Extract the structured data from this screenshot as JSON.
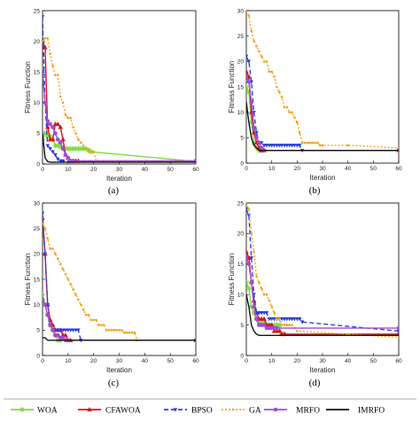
{
  "chart_data": [
    {
      "type": "line",
      "panel_label": "(a)",
      "xlabel": "Iteration",
      "ylabel": "Fitness Function",
      "xlim": [
        0,
        60
      ],
      "ylim": [
        0,
        25
      ],
      "xticks": [
        0,
        10,
        20,
        30,
        40,
        50,
        60
      ],
      "yticks": [
        0,
        5,
        10,
        15,
        20,
        25
      ],
      "grid": false,
      "series": [
        {
          "name": "WOA",
          "x": [
            0,
            1,
            2,
            3,
            4,
            5,
            6,
            7,
            8,
            9,
            10,
            11,
            12,
            13,
            14,
            15,
            16,
            17,
            18,
            19,
            60
          ],
          "y": [
            4,
            5,
            4.5,
            4.5,
            4,
            3,
            3,
            2.8,
            2.6,
            2.5,
            2.5,
            2.5,
            2.5,
            2.5,
            2.5,
            2.5,
            2.5,
            2.5,
            2.3,
            2,
            0.4
          ]
        },
        {
          "name": "CFAWOA",
          "x": [
            0,
            1,
            2,
            3,
            4,
            5,
            6,
            7,
            8,
            9,
            10,
            11,
            12,
            13,
            14,
            60
          ],
          "y": [
            20,
            19,
            6,
            4,
            4,
            6.5,
            6.5,
            6,
            4,
            1.5,
            1,
            0.5,
            0.5,
            0.5,
            0.5,
            0.5
          ]
        },
        {
          "name": "BPSO",
          "x": [
            0,
            1,
            2,
            3,
            4,
            5,
            6,
            7,
            8,
            60
          ],
          "y": [
            24,
            10,
            3,
            2.5,
            2,
            1.5,
            0.8,
            0.5,
            0.5,
            0.5
          ]
        },
        {
          "name": "GA",
          "x": [
            0,
            1,
            2,
            3,
            4,
            5,
            6,
            7,
            8,
            9,
            10,
            11,
            12,
            13,
            14,
            15,
            16,
            17,
            18,
            19,
            20,
            21,
            60
          ],
          "y": [
            20,
            20.5,
            20.5,
            18,
            16,
            14.5,
            14.5,
            11,
            10,
            8,
            7.5,
            7.5,
            6,
            5,
            4,
            3.5,
            3,
            2.5,
            2,
            2,
            2,
            0.5,
            0.5
          ]
        },
        {
          "name": "MRFO",
          "x": [
            0,
            1,
            2,
            3,
            4,
            5,
            6,
            7,
            8,
            9,
            10,
            11,
            12,
            60
          ],
          "y": [
            15,
            10,
            7,
            6.5,
            6,
            5,
            4,
            3.5,
            2.5,
            1.5,
            1,
            0.5,
            0.5,
            0.5
          ]
        },
        {
          "name": "IMRFO",
          "x": [
            0,
            1,
            2,
            3,
            4,
            60
          ],
          "y": [
            5,
            1,
            0.4,
            0.3,
            0.3,
            0.3
          ]
        }
      ]
    },
    {
      "type": "line",
      "panel_label": "(b)",
      "xlabel": "Iteration",
      "ylabel": "Fitness Function",
      "xlim": [
        0,
        60
      ],
      "ylim": [
        0,
        30
      ],
      "xticks": [
        0,
        10,
        20,
        30,
        40,
        50,
        60
      ],
      "yticks": [
        0,
        5,
        10,
        15,
        20,
        25,
        30
      ],
      "grid": false,
      "series": [
        {
          "name": "WOA",
          "x": [
            0,
            1,
            2,
            3,
            4,
            5,
            6,
            60
          ],
          "y": [
            15,
            14,
            8,
            4,
            3,
            2.5,
            2.5,
            2.5
          ]
        },
        {
          "name": "CFAWOA",
          "x": [
            0,
            1,
            2,
            3,
            4,
            5,
            6,
            7,
            60
          ],
          "y": [
            18,
            17,
            10,
            6,
            4,
            3,
            2.5,
            2.5,
            2.5
          ]
        },
        {
          "name": "BPSO",
          "x": [
            0,
            1,
            2,
            3,
            4,
            5,
            6,
            7,
            8,
            9,
            10,
            11,
            12,
            13,
            14,
            15,
            16,
            17,
            18,
            19,
            20,
            21,
            22,
            60
          ],
          "y": [
            21,
            20,
            16,
            10,
            6,
            4,
            4,
            3.5,
            3.5,
            3.5,
            3.5,
            3.5,
            3.5,
            3.5,
            3.5,
            3.5,
            3.5,
            3.5,
            3.5,
            3.5,
            3.5,
            3.5,
            2.5,
            2.5
          ]
        },
        {
          "name": "GA",
          "x": [
            0,
            1,
            2,
            3,
            4,
            5,
            6,
            7,
            8,
            9,
            10,
            11,
            12,
            13,
            14,
            15,
            16,
            17,
            18,
            19,
            20,
            21,
            22,
            23,
            24,
            25,
            26,
            27,
            28,
            29,
            30,
            40,
            60
          ],
          "y": [
            30,
            29,
            26,
            24,
            23,
            22,
            21,
            20,
            20,
            18,
            18,
            17,
            15,
            14,
            13,
            11,
            11,
            10,
            10,
            9,
            8,
            6,
            4,
            4,
            4,
            4,
            4,
            4,
            4,
            3.5,
            3.5,
            3.5,
            3
          ]
        },
        {
          "name": "MRFO",
          "x": [
            0,
            1,
            2,
            3,
            4,
            5,
            6,
            7,
            60
          ],
          "y": [
            17,
            16,
            12,
            7,
            5,
            4,
            3,
            2.5,
            2.5
          ]
        },
        {
          "name": "IMRFO",
          "x": [
            0,
            1,
            2,
            3,
            4,
            5,
            60
          ],
          "y": [
            12,
            8,
            5,
            3.5,
            3,
            2.5,
            2.5
          ]
        }
      ]
    },
    {
      "type": "line",
      "panel_label": "(c)",
      "xlabel": "Iteration",
      "ylabel": "Fitness Function",
      "xlim": [
        0,
        60
      ],
      "ylim": [
        0,
        30
      ],
      "xticks": [
        0,
        10,
        20,
        30,
        40,
        50,
        60
      ],
      "yticks": [
        0,
        5,
        10,
        15,
        20,
        25,
        30
      ],
      "grid": false,
      "series": [
        {
          "name": "WOA",
          "x": [
            0,
            1,
            2,
            3,
            4,
            5,
            6,
            7,
            60
          ],
          "y": [
            12,
            10,
            8,
            6,
            5,
            4,
            3,
            3,
            3
          ]
        },
        {
          "name": "CFAWOA",
          "x": [
            0,
            1,
            2,
            3,
            4,
            5,
            6,
            7,
            8,
            9,
            10,
            11,
            60
          ],
          "y": [
            27,
            20,
            10,
            7,
            6,
            5,
            5,
            5,
            4,
            4,
            3,
            3,
            3
          ]
        },
        {
          "name": "BPSO",
          "x": [
            0,
            1,
            2,
            3,
            4,
            5,
            6,
            7,
            8,
            9,
            10,
            11,
            12,
            13,
            14,
            15,
            60
          ],
          "y": [
            28,
            20,
            10,
            6,
            5,
            5,
            5,
            5,
            5,
            5,
            5,
            5,
            5,
            5,
            5,
            3,
            3
          ]
        },
        {
          "name": "GA",
          "x": [
            0,
            1,
            2,
            3,
            4,
            5,
            6,
            7,
            8,
            9,
            10,
            11,
            12,
            13,
            14,
            15,
            16,
            17,
            18,
            19,
            20,
            21,
            22,
            23,
            24,
            25,
            26,
            27,
            28,
            29,
            30,
            31,
            32,
            33,
            34,
            35,
            36,
            37,
            60
          ],
          "y": [
            26,
            25,
            23,
            21,
            21,
            20,
            19,
            18,
            17,
            16,
            15,
            14,
            13,
            12,
            11,
            10,
            9,
            8,
            8,
            7,
            7,
            7,
            6,
            6,
            6,
            5,
            5,
            5,
            5,
            5,
            5,
            5,
            4.5,
            4.5,
            4.5,
            4.5,
            4.5,
            3,
            3
          ]
        },
        {
          "name": "MRFO",
          "x": [
            0,
            1,
            2,
            3,
            4,
            5,
            6,
            7,
            8,
            9,
            10,
            60
          ],
          "y": [
            11,
            10,
            8,
            6,
            5,
            4,
            4,
            3.5,
            3.5,
            3,
            3,
            3
          ]
        },
        {
          "name": "IMRFO",
          "x": [
            0,
            1,
            2,
            3,
            60
          ],
          "y": [
            3.5,
            3.5,
            3,
            3,
            3
          ]
        }
      ]
    },
    {
      "type": "line",
      "panel_label": "(d)",
      "xlabel": "Iteration",
      "ylabel": "Fitness Function",
      "xlim": [
        0,
        60
      ],
      "ylim": [
        0,
        25
      ],
      "xticks": [
        0,
        10,
        20,
        30,
        40,
        50,
        60
      ],
      "yticks": [
        0,
        5,
        10,
        15,
        20,
        25
      ],
      "grid": false,
      "series": [
        {
          "name": "WOA",
          "x": [
            0,
            1,
            2,
            3,
            4,
            5,
            6,
            7,
            8,
            9,
            10,
            11,
            12,
            13,
            14,
            15,
            60
          ],
          "y": [
            12,
            11,
            8,
            7,
            6,
            5.5,
            5.5,
            5.5,
            5,
            5,
            5,
            5,
            5,
            5,
            3.5,
            3.5,
            3.5
          ]
        },
        {
          "name": "CFAWOA",
          "x": [
            0,
            1,
            2,
            3,
            4,
            5,
            6,
            7,
            8,
            9,
            10,
            11,
            12,
            13,
            14,
            15,
            60
          ],
          "y": [
            17,
            16,
            12,
            9,
            7,
            6,
            6,
            6,
            5,
            5,
            5,
            4,
            4,
            4,
            3.5,
            3.5,
            3.5
          ]
        },
        {
          "name": "BPSO",
          "x": [
            0,
            1,
            2,
            3,
            4,
            5,
            6,
            7,
            8,
            9,
            10,
            11,
            12,
            13,
            14,
            15,
            16,
            17,
            18,
            19,
            20,
            21,
            22,
            60
          ],
          "y": [
            24,
            23,
            16,
            10,
            7,
            7,
            7,
            7,
            7,
            6,
            6,
            6,
            6,
            6,
            6,
            6,
            6,
            6,
            6,
            6,
            6,
            6,
            5.5,
            4
          ]
        },
        {
          "name": "GA",
          "x": [
            0,
            1,
            2,
            3,
            4,
            5,
            6,
            7,
            8,
            9,
            10,
            11,
            12,
            13,
            14,
            15,
            16,
            17,
            18,
            19,
            20,
            40,
            60
          ],
          "y": [
            25,
            24,
            20,
            17,
            13,
            12,
            11,
            10,
            10,
            9,
            8,
            7,
            6,
            6,
            5,
            5,
            5,
            5,
            5,
            4.5,
            4,
            3.5,
            3
          ]
        },
        {
          "name": "MRFO",
          "x": [
            0,
            1,
            2,
            3,
            4,
            5,
            6,
            7,
            8,
            9,
            10,
            11,
            12,
            60
          ],
          "y": [
            16,
            15,
            12,
            8,
            6,
            5,
            5,
            5,
            4.5,
            4.5,
            4.5,
            4.5,
            4.5,
            4.5
          ]
        },
        {
          "name": "IMRFO",
          "x": [
            0,
            1,
            2,
            3,
            4,
            5,
            6,
            60
          ],
          "y": [
            10,
            8,
            5,
            4,
            3.5,
            3.3,
            3.3,
            3.3
          ]
        }
      ]
    }
  ],
  "legend": {
    "placement": "bottom",
    "items": [
      "WOA",
      "CFAWOA",
      "BPSO",
      "GA",
      "MRFO",
      "IMRFO"
    ]
  },
  "styles": {
    "WOA": {
      "color": "#7ddc3f",
      "dash": "",
      "marker": "star"
    },
    "CFAWOA": {
      "color": "#d8141c",
      "dash": "",
      "marker": "triangle"
    },
    "BPSO": {
      "color": "#2f3fe0",
      "dash": "5,3",
      "marker": "arrow"
    },
    "GA": {
      "color": "#f0a21a",
      "dash": "2,2",
      "marker": "circle-dot"
    },
    "MRFO": {
      "color": "#a24ad8",
      "dash": "",
      "marker": "circle"
    },
    "IMRFO": {
      "color": "#111111",
      "dash": "",
      "marker": "none"
    }
  }
}
